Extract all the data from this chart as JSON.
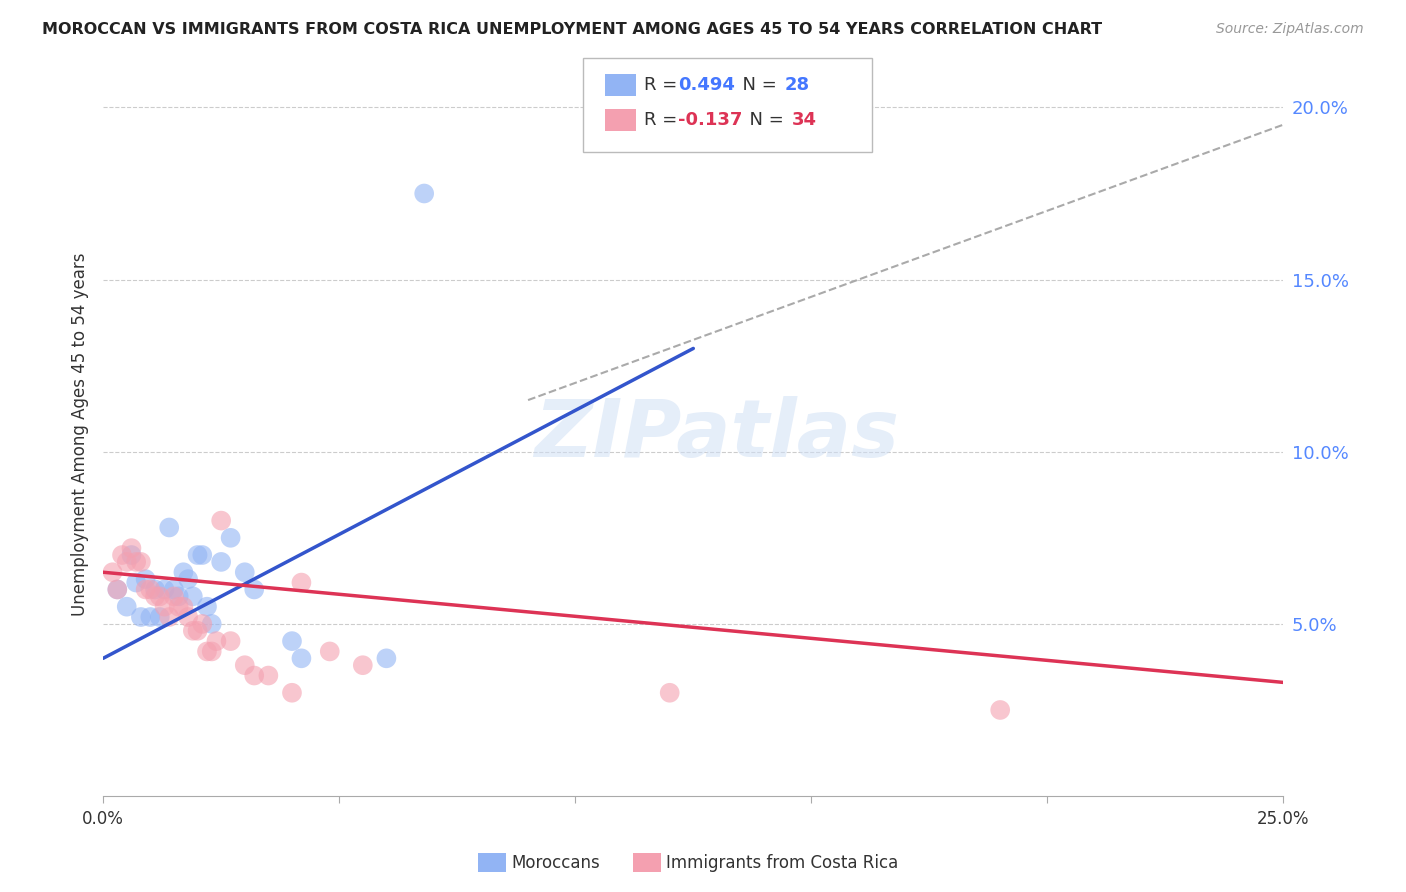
{
  "title": "MOROCCAN VS IMMIGRANTS FROM COSTA RICA UNEMPLOYMENT AMONG AGES 45 TO 54 YEARS CORRELATION CHART",
  "source": "Source: ZipAtlas.com",
  "ylabel": "Unemployment Among Ages 45 to 54 years",
  "xlim": [
    0,
    0.25
  ],
  "ylim": [
    0,
    0.21
  ],
  "x_tick_positions": [
    0.0,
    0.05,
    0.1,
    0.15,
    0.2,
    0.25
  ],
  "x_tick_labels": [
    "0.0%",
    "",
    "",
    "",
    "",
    "25.0%"
  ],
  "y_ticks_right": [
    0.05,
    0.1,
    0.15,
    0.2
  ],
  "y_tick_labels_right": [
    "5.0%",
    "10.0%",
    "15.0%",
    "20.0%"
  ],
  "watermark": "ZIPatlas",
  "blue_color": "#92b4f4",
  "pink_color": "#f4a0b0",
  "blue_line_color": "#3355cc",
  "pink_line_color": "#dd3355",
  "dashed_line_color": "#aaaaaa",
  "moroccans_x": [
    0.003,
    0.005,
    0.006,
    0.007,
    0.008,
    0.009,
    0.01,
    0.011,
    0.012,
    0.013,
    0.014,
    0.015,
    0.016,
    0.017,
    0.018,
    0.019,
    0.02,
    0.021,
    0.022,
    0.023,
    0.025,
    0.027,
    0.03,
    0.032,
    0.04,
    0.042,
    0.06,
    0.068
  ],
  "moroccans_y": [
    0.06,
    0.055,
    0.07,
    0.062,
    0.052,
    0.063,
    0.052,
    0.06,
    0.052,
    0.06,
    0.078,
    0.06,
    0.058,
    0.065,
    0.063,
    0.058,
    0.07,
    0.07,
    0.055,
    0.05,
    0.068,
    0.075,
    0.065,
    0.06,
    0.045,
    0.04,
    0.04,
    0.175
  ],
  "costa_rica_x": [
    0.002,
    0.003,
    0.004,
    0.005,
    0.006,
    0.007,
    0.008,
    0.009,
    0.01,
    0.011,
    0.012,
    0.013,
    0.014,
    0.015,
    0.016,
    0.017,
    0.018,
    0.019,
    0.02,
    0.021,
    0.022,
    0.023,
    0.024,
    0.025,
    0.027,
    0.03,
    0.032,
    0.035,
    0.04,
    0.042,
    0.048,
    0.055,
    0.12,
    0.19
  ],
  "costa_rica_y": [
    0.065,
    0.06,
    0.07,
    0.068,
    0.072,
    0.068,
    0.068,
    0.06,
    0.06,
    0.058,
    0.058,
    0.055,
    0.052,
    0.058,
    0.055,
    0.055,
    0.052,
    0.048,
    0.048,
    0.05,
    0.042,
    0.042,
    0.045,
    0.08,
    0.045,
    0.038,
    0.035,
    0.035,
    0.03,
    0.062,
    0.042,
    0.038,
    0.03,
    0.025
  ],
  "blue_fit_x": [
    0.0,
    0.125
  ],
  "blue_fit_y": [
    0.04,
    0.13
  ],
  "pink_fit_x": [
    0.0,
    0.25
  ],
  "pink_fit_y": [
    0.065,
    0.033
  ],
  "dashed_fit_x": [
    0.09,
    0.25
  ],
  "dashed_fit_y": [
    0.115,
    0.195
  ]
}
